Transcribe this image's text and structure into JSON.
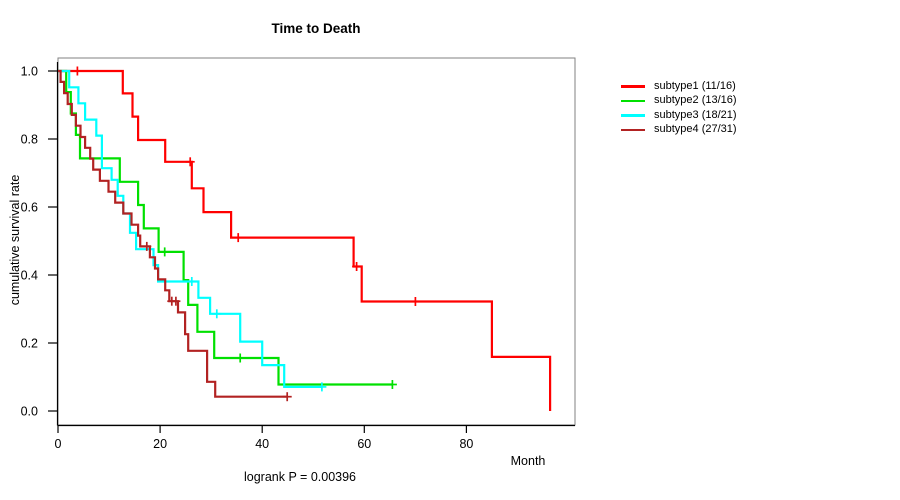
{
  "chart_data": {
    "type": "line",
    "plot_style": "kaplan-meier-step",
    "title": "Time to Death",
    "xlabel": "Month",
    "ylabel": "cumulative survival rate",
    "annotation": "logrank P = 0.00396",
    "xlim": [
      0,
      101
    ],
    "ylim": [
      0.0,
      1.0
    ],
    "x_ticks": [
      0,
      20,
      40,
      60,
      80
    ],
    "y_ticks": [
      "0.0",
      "0.2",
      "0.4",
      "0.6",
      "0.8",
      "1.0"
    ],
    "grid": false,
    "legend_position": "right-outside",
    "series": [
      {
        "name": "subtype1 (11/16)",
        "color": "#ff0000",
        "deaths": 11,
        "n": 16,
        "steps": [
          [
            0,
            1.0
          ],
          [
            12.7,
            0.934
          ],
          [
            14.6,
            0.866
          ],
          [
            15.7,
            0.797
          ],
          [
            21.0,
            0.733
          ],
          [
            26.2,
            0.655
          ],
          [
            28.5,
            0.585
          ],
          [
            33.9,
            0.51
          ],
          [
            57.9,
            0.425
          ],
          [
            59.5,
            0.322
          ],
          [
            85.0,
            0.159
          ],
          [
            96.4,
            0.0
          ]
        ],
        "censor_marks": [
          [
            3.8,
            1.0
          ],
          [
            25.9,
            0.733
          ],
          [
            35.3,
            0.51
          ],
          [
            58.5,
            0.425
          ],
          [
            70.0,
            0.322
          ]
        ],
        "end_month": 96.4
      },
      {
        "name": "subtype2 (13/16)",
        "color": "#00e000",
        "deaths": 13,
        "n": 16,
        "steps": [
          [
            0,
            1.0
          ],
          [
            1.6,
            0.938
          ],
          [
            2.5,
            0.875
          ],
          [
            3.5,
            0.812
          ],
          [
            4.3,
            0.743
          ],
          [
            12.1,
            0.674
          ],
          [
            15.7,
            0.606
          ],
          [
            16.8,
            0.537
          ],
          [
            19.7,
            0.468
          ],
          [
            24.6,
            0.385
          ],
          [
            25.5,
            0.312
          ],
          [
            27.3,
            0.233
          ],
          [
            30.6,
            0.156
          ],
          [
            43.2,
            0.078
          ]
        ],
        "censor_marks": [
          [
            20.9,
            0.468
          ],
          [
            35.7,
            0.156
          ],
          [
            65.5,
            0.078
          ]
        ],
        "end_month": 65.5
      },
      {
        "name": "subtype3 (18/21)",
        "color": "#00ffff",
        "deaths": 18,
        "n": 21,
        "steps": [
          [
            0,
            1.0
          ],
          [
            2.2,
            0.952
          ],
          [
            4.0,
            0.905
          ],
          [
            5.3,
            0.857
          ],
          [
            7.5,
            0.81
          ],
          [
            8.6,
            0.714
          ],
          [
            10.5,
            0.68
          ],
          [
            11.7,
            0.633
          ],
          [
            12.8,
            0.581
          ],
          [
            14.1,
            0.524
          ],
          [
            15.3,
            0.476
          ],
          [
            18.7,
            0.429
          ],
          [
            19.6,
            0.381
          ],
          [
            27.5,
            0.333
          ],
          [
            29.8,
            0.286
          ],
          [
            35.7,
            0.204
          ],
          [
            40.0,
            0.135
          ],
          [
            44.3,
            0.071
          ]
        ],
        "censor_marks": [
          [
            26.2,
            0.381
          ],
          [
            31.1,
            0.286
          ],
          [
            51.7,
            0.071
          ]
        ],
        "end_month": 51.7
      },
      {
        "name": "subtype4 (27/31)",
        "color": "#b22222",
        "deaths": 27,
        "n": 31,
        "steps": [
          [
            0,
            1.0
          ],
          [
            0.5,
            0.968
          ],
          [
            1.2,
            0.935
          ],
          [
            1.9,
            0.903
          ],
          [
            2.7,
            0.871
          ],
          [
            3.5,
            0.839
          ],
          [
            4.4,
            0.806
          ],
          [
            5.3,
            0.774
          ],
          [
            6.3,
            0.742
          ],
          [
            6.9,
            0.71
          ],
          [
            8.2,
            0.677
          ],
          [
            9.9,
            0.645
          ],
          [
            11.2,
            0.613
          ],
          [
            12.8,
            0.581
          ],
          [
            14.4,
            0.548
          ],
          [
            15.7,
            0.516
          ],
          [
            16.1,
            0.484
          ],
          [
            18.0,
            0.452
          ],
          [
            19.0,
            0.419
          ],
          [
            19.6,
            0.387
          ],
          [
            21.0,
            0.355
          ],
          [
            21.8,
            0.323
          ],
          [
            23.5,
            0.29
          ],
          [
            24.9,
            0.226
          ],
          [
            25.5,
            0.177
          ],
          [
            29.2,
            0.086
          ],
          [
            30.8,
            0.042
          ]
        ],
        "censor_marks": [
          [
            17.4,
            0.484
          ],
          [
            22.3,
            0.323
          ],
          [
            23.1,
            0.323
          ],
          [
            44.9,
            0.042
          ]
        ],
        "end_month": 44.9
      }
    ]
  }
}
